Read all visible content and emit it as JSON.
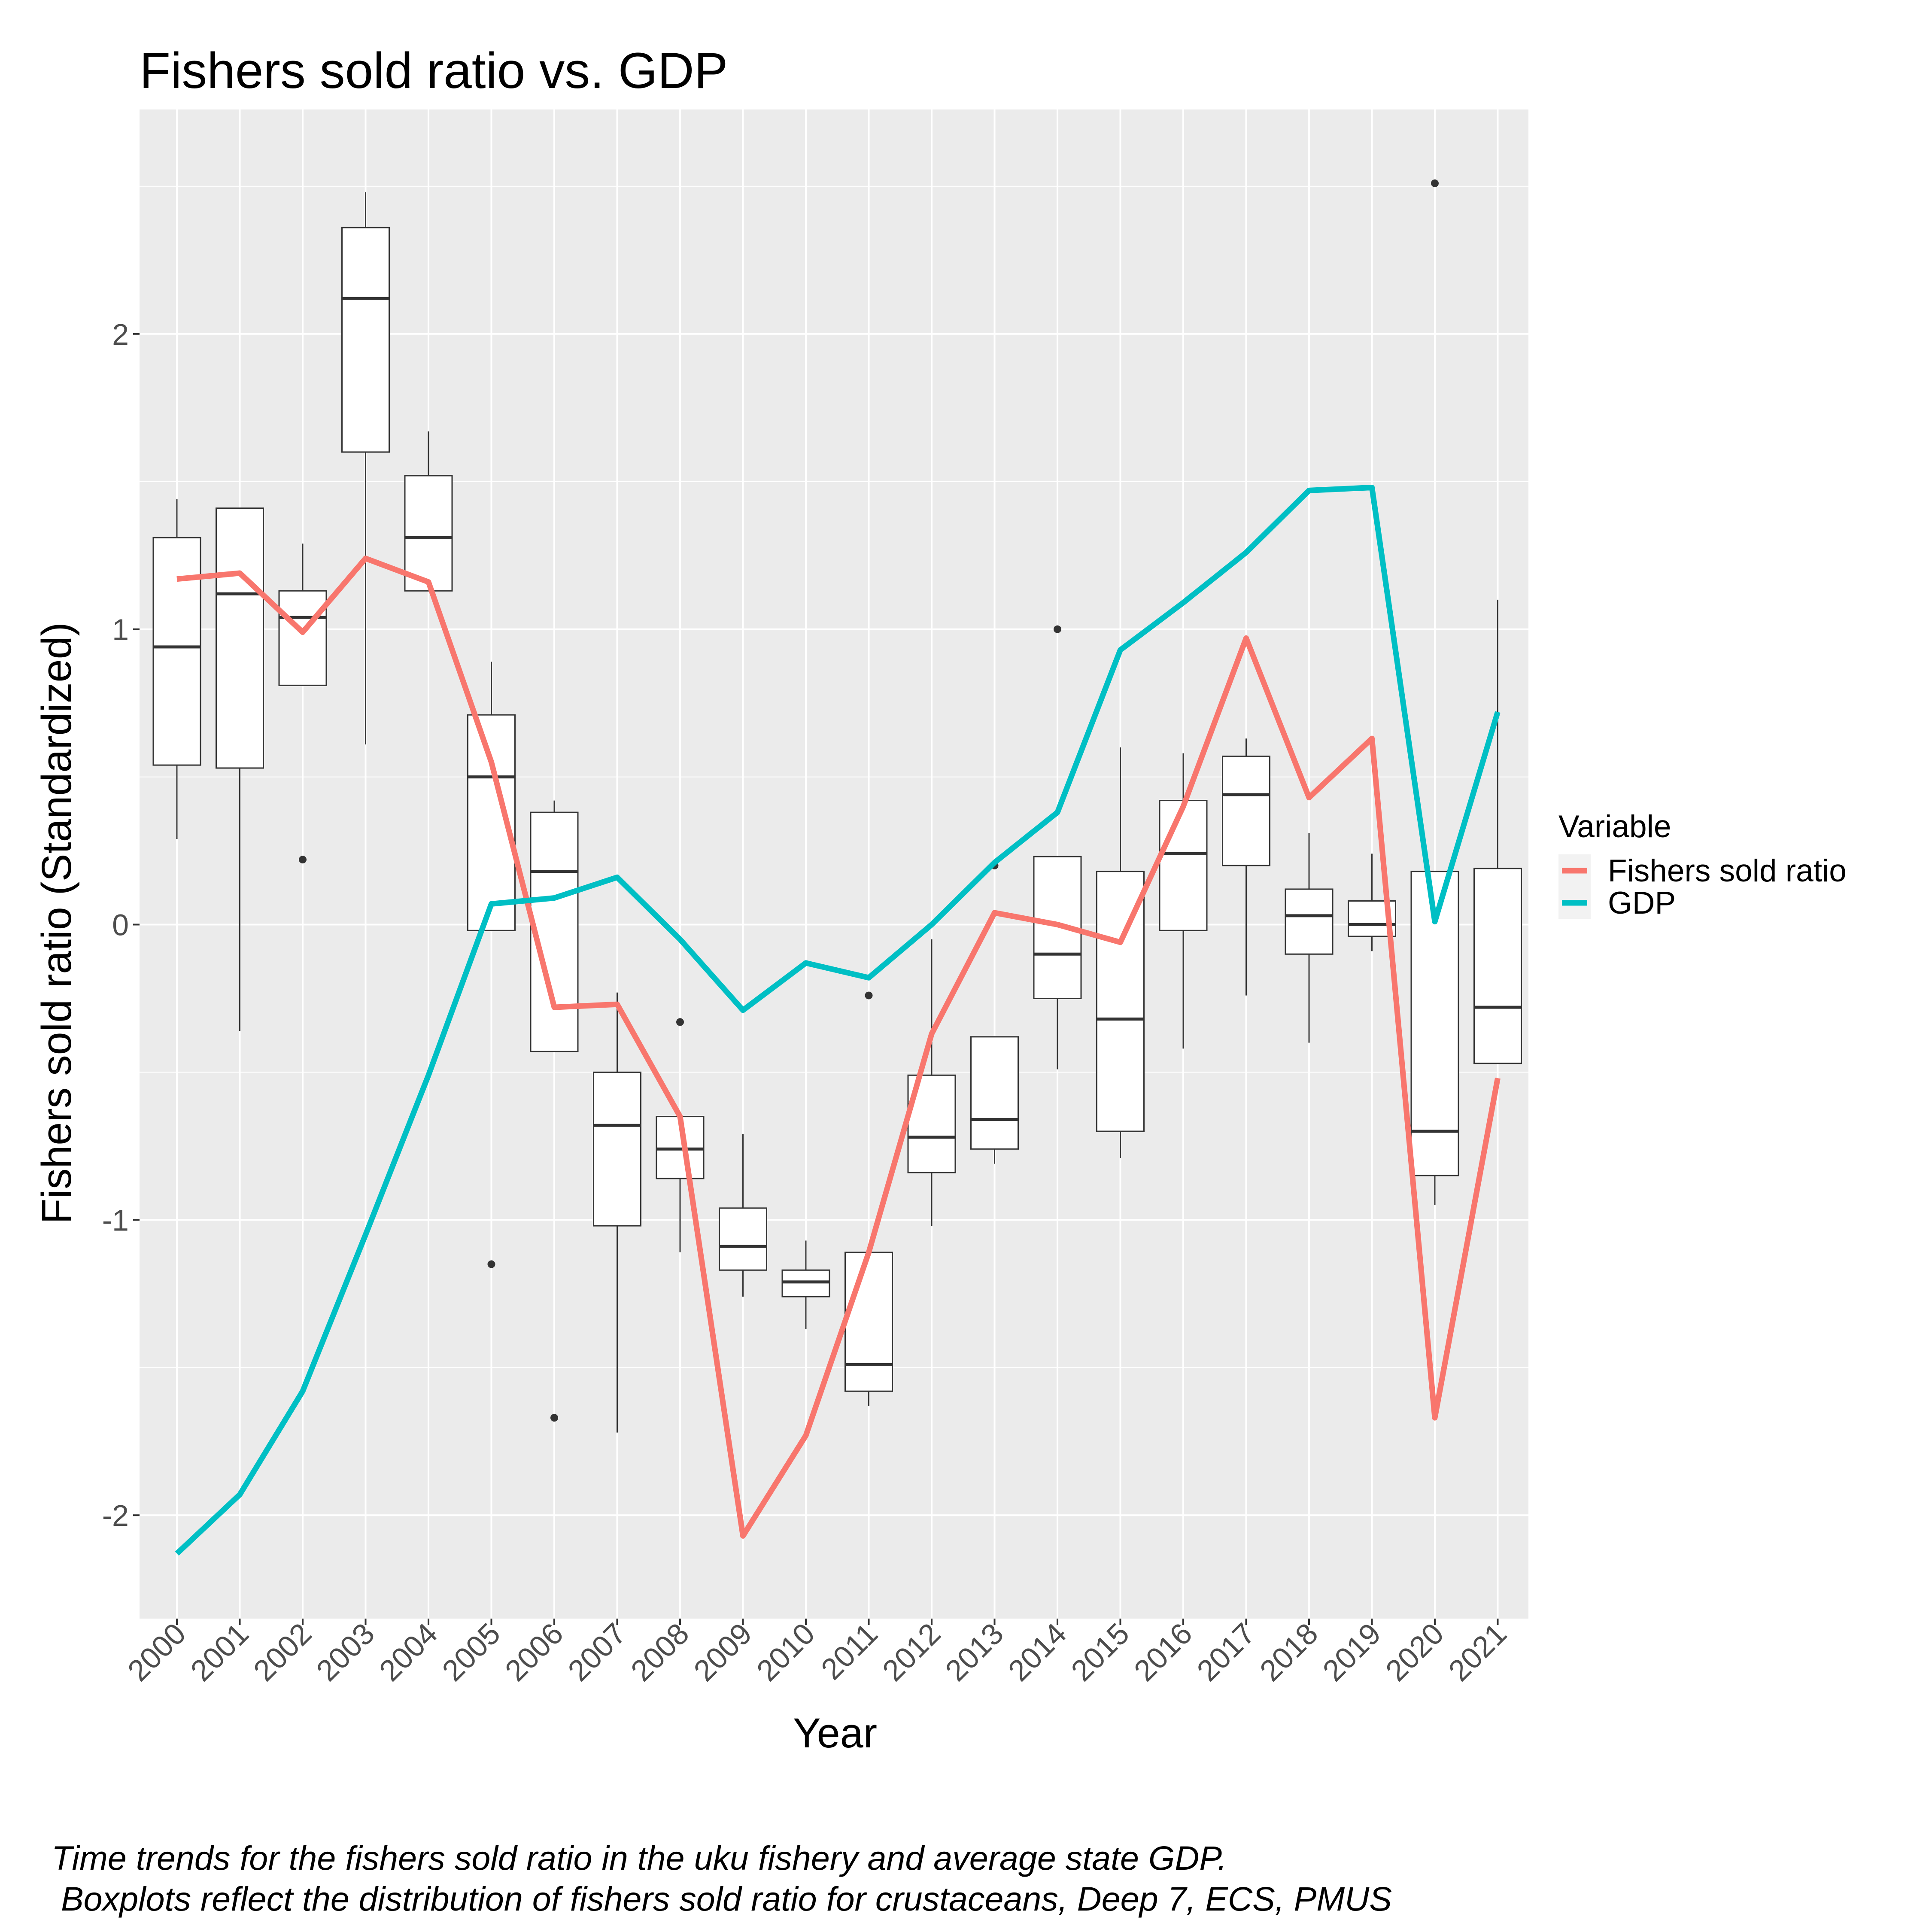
{
  "chart_data": {
    "type": "boxplot+line",
    "title": "Fishers sold ratio vs. GDP",
    "xlabel": "Year",
    "ylabel": "Fishers sold ratio (Standardized)",
    "ylim": [
      -2.35,
      2.76
    ],
    "y_ticks": [
      -2,
      -1,
      0,
      1,
      2
    ],
    "y_tick_labels": [
      "-2",
      "-1",
      "0",
      "1",
      "2"
    ],
    "categories": [
      "2000",
      "2001",
      "2002",
      "2003",
      "2004",
      "2005",
      "2006",
      "2007",
      "2008",
      "2009",
      "2010",
      "2011",
      "2012",
      "2013",
      "2014",
      "2015",
      "2016",
      "2017",
      "2018",
      "2019",
      "2020",
      "2021"
    ],
    "grid": true,
    "legend": {
      "title": "Variable",
      "position": "right",
      "entries": [
        {
          "label": "Fishers sold ratio",
          "color": "#F8766D"
        },
        {
          "label": "GDP",
          "color": "#00BFC4"
        }
      ]
    },
    "boxplots": [
      {
        "x": "2000",
        "lower_whisker": 0.29,
        "q1": 0.54,
        "median": 0.94,
        "q3": 1.31,
        "upper_whisker": 1.44,
        "outliers": []
      },
      {
        "x": "2001",
        "lower_whisker": -0.36,
        "q1": 0.53,
        "median": 1.12,
        "q3": 1.41,
        "upper_whisker": 1.41,
        "outliers": []
      },
      {
        "x": "2002",
        "lower_whisker": 0.81,
        "q1": 0.81,
        "median": 1.04,
        "q3": 1.13,
        "upper_whisker": 1.29,
        "outliers": [
          0.22
        ]
      },
      {
        "x": "2003",
        "lower_whisker": 0.61,
        "q1": 1.6,
        "median": 2.12,
        "q3": 2.36,
        "upper_whisker": 2.48,
        "outliers": []
      },
      {
        "x": "2004",
        "lower_whisker": 1.13,
        "q1": 1.13,
        "median": 1.31,
        "q3": 1.52,
        "upper_whisker": 1.67,
        "outliers": []
      },
      {
        "x": "2005",
        "lower_whisker": -0.02,
        "q1": -0.02,
        "median": 0.5,
        "q3": 0.71,
        "upper_whisker": 0.89,
        "outliers": [
          -1.15
        ]
      },
      {
        "x": "2006",
        "lower_whisker": -0.43,
        "q1": -0.43,
        "median": 0.18,
        "q3": 0.38,
        "upper_whisker": 0.42,
        "outliers": [
          -1.67
        ]
      },
      {
        "x": "2007",
        "lower_whisker": -1.72,
        "q1": -1.02,
        "median": -0.68,
        "q3": -0.5,
        "upper_whisker": -0.23,
        "outliers": []
      },
      {
        "x": "2008",
        "lower_whisker": -1.11,
        "q1": -0.86,
        "median": -0.76,
        "q3": -0.65,
        "upper_whisker": -0.65,
        "outliers": [
          -0.33
        ]
      },
      {
        "x": "2009",
        "lower_whisker": -1.26,
        "q1": -1.17,
        "median": -1.09,
        "q3": -0.96,
        "upper_whisker": -0.71,
        "outliers": []
      },
      {
        "x": "2010",
        "lower_whisker": -1.37,
        "q1": -1.26,
        "median": -1.21,
        "q3": -1.17,
        "upper_whisker": -1.07,
        "outliers": []
      },
      {
        "x": "2011",
        "lower_whisker": -1.63,
        "q1": -1.58,
        "median": -1.49,
        "q3": -1.11,
        "upper_whisker": -1.11,
        "outliers": [
          -0.24
        ]
      },
      {
        "x": "2012",
        "lower_whisker": -1.02,
        "q1": -0.84,
        "median": -0.72,
        "q3": -0.51,
        "upper_whisker": -0.05,
        "outliers": []
      },
      {
        "x": "2013",
        "lower_whisker": -0.81,
        "q1": -0.76,
        "median": -0.66,
        "q3": -0.38,
        "upper_whisker": -0.38,
        "outliers": [
          0.2
        ]
      },
      {
        "x": "2014",
        "lower_whisker": -0.49,
        "q1": -0.25,
        "median": -0.1,
        "q3": 0.23,
        "upper_whisker": 0.23,
        "outliers": [
          1.0
        ]
      },
      {
        "x": "2015",
        "lower_whisker": -0.79,
        "q1": -0.7,
        "median": -0.32,
        "q3": 0.18,
        "upper_whisker": 0.6,
        "outliers": []
      },
      {
        "x": "2016",
        "lower_whisker": -0.42,
        "q1": -0.02,
        "median": 0.24,
        "q3": 0.42,
        "upper_whisker": 0.58,
        "outliers": []
      },
      {
        "x": "2017",
        "lower_whisker": -0.24,
        "q1": 0.2,
        "median": 0.44,
        "q3": 0.57,
        "upper_whisker": 0.63,
        "outliers": []
      },
      {
        "x": "2018",
        "lower_whisker": -0.4,
        "q1": -0.1,
        "median": 0.03,
        "q3": 0.12,
        "upper_whisker": 0.31,
        "outliers": []
      },
      {
        "x": "2019",
        "lower_whisker": -0.09,
        "q1": -0.04,
        "median": 0.0,
        "q3": 0.08,
        "upper_whisker": 0.24,
        "outliers": []
      },
      {
        "x": "2020",
        "lower_whisker": -0.95,
        "q1": -0.85,
        "median": -0.7,
        "q3": 0.18,
        "upper_whisker": 0.18,
        "outliers": [
          2.51
        ]
      },
      {
        "x": "2021",
        "lower_whisker": -0.47,
        "q1": -0.47,
        "median": -0.28,
        "q3": 0.19,
        "upper_whisker": 1.1,
        "outliers": []
      }
    ],
    "series": [
      {
        "name": "Fishers sold ratio",
        "color": "#F8766D",
        "values": [
          1.17,
          1.19,
          0.99,
          1.24,
          1.16,
          0.55,
          -0.28,
          -0.27,
          -0.65,
          -2.07,
          -1.73,
          -1.11,
          -0.37,
          0.04,
          0.0,
          -0.06,
          0.4,
          0.97,
          0.43,
          0.63,
          -1.67,
          -0.52
        ]
      },
      {
        "name": "GDP",
        "color": "#00BFC4",
        "values": [
          -2.13,
          -1.93,
          -1.58,
          -1.05,
          -0.51,
          0.07,
          0.09,
          0.16,
          -0.05,
          -0.29,
          -0.13,
          -0.18,
          0.0,
          0.21,
          0.38,
          0.93,
          1.09,
          1.26,
          1.47,
          1.48,
          0.01,
          0.72
        ]
      }
    ]
  },
  "caption": {
    "line1": "Time trends for the fishers sold ratio in the uku fishery and average state GDP.",
    "line2": " Boxplots reflect the distribution of fishers sold ratio for crustaceans, Deep 7, ECS, PMUS"
  }
}
